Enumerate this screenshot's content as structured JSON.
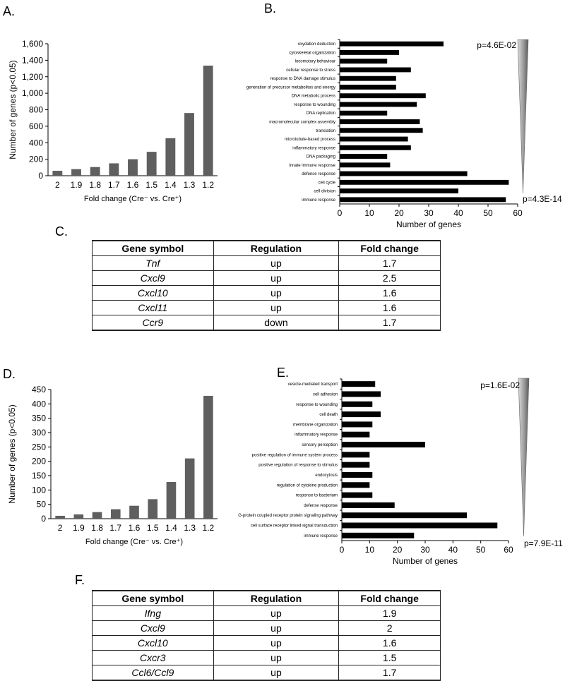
{
  "panels": {
    "a": "A.",
    "b": "B.",
    "c": "C.",
    "d": "D.",
    "e": "E.",
    "f": "F."
  },
  "colors": {
    "hist_bar": "#5f5f5f",
    "go_bar": "#000000",
    "axis": "#000000"
  },
  "pvalues": {
    "b_top": "p=4.6E-02",
    "b_bottom": "p=4.3E-14",
    "e_top": "p=1.6E-02",
    "e_bottom": "p=7.9E-11"
  },
  "tables": {
    "c": {
      "headers": [
        "Gene symbol",
        "Regulation",
        "Fold change"
      ],
      "rows": [
        [
          "Tnf",
          "up",
          "1.7"
        ],
        [
          "Cxcl9",
          "up",
          "2.5"
        ],
        [
          "Cxcl10",
          "up",
          "1.6"
        ],
        [
          "Cxcl11",
          "up",
          "1.6"
        ],
        [
          "Ccr9",
          "down",
          "1.7"
        ]
      ]
    },
    "f": {
      "headers": [
        "Gene symbol",
        "Regulation",
        "Fold change"
      ],
      "rows": [
        [
          "Ifng",
          "up",
          "1.9"
        ],
        [
          "Cxcl9",
          "up",
          "2"
        ],
        [
          "Cxcl10",
          "up",
          "1.6"
        ],
        [
          "Cxcr3",
          "up",
          "1.5"
        ],
        [
          "Ccl6/Ccl9",
          "up",
          "1.7"
        ]
      ]
    }
  },
  "chart_data": [
    {
      "id": "A",
      "type": "bar",
      "categories": [
        "2",
        "1.9",
        "1.8",
        "1.7",
        "1.6",
        "1.5",
        "1.4",
        "1.3",
        "1.2"
      ],
      "values": [
        60,
        80,
        105,
        150,
        200,
        290,
        455,
        760,
        1335
      ],
      "ylabel": "Number of genes (p<0.05)",
      "xlabel": "Fold change (Cre⁻ vs. Cre⁺)",
      "ylim": [
        0,
        1600
      ],
      "yticks": [
        0,
        200,
        400,
        600,
        800,
        1000,
        1200,
        1400,
        1600
      ],
      "ytick_labels": [
        "0",
        "200",
        "400",
        "600",
        "800",
        "1,000",
        "1,200",
        "1,400",
        "1,600"
      ]
    },
    {
      "id": "B",
      "type": "bar",
      "orientation": "horizontal",
      "categories": [
        "oxydation deduction",
        "cytoskeletal organization",
        "locomotory behaviour",
        "cellular response to stress",
        "response to DNA damage stimulus",
        "generation of precursor metabolites and energy",
        "DNA metabolic process",
        "response to wounding",
        "DNA replication",
        "macromolecular complex assembly",
        "translation",
        "microtubule-based process",
        "inflammatory response",
        "DNA packaging",
        "innate immune response",
        "defense response",
        "cell cycle",
        "cell division",
        "immune response"
      ],
      "values": [
        35,
        20,
        16,
        24,
        19,
        19,
        29,
        26,
        16,
        27,
        28,
        23,
        24,
        16,
        17,
        43,
        57,
        40,
        56
      ],
      "xlabel": "Number of genes",
      "xlim": [
        0,
        60
      ],
      "xticks": [
        0,
        10,
        20,
        30,
        40,
        50,
        60
      ]
    },
    {
      "id": "D",
      "type": "bar",
      "categories": [
        "2",
        "1.9",
        "1.8",
        "1.7",
        "1.6",
        "1.5",
        "1.4",
        "1.3",
        "1.2"
      ],
      "values": [
        10,
        15,
        23,
        33,
        45,
        68,
        128,
        210,
        428
      ],
      "ylabel": "Number of genes (p<0.05)",
      "xlabel": "Fold change (Cre⁻ vs. Cre⁺)",
      "ylim": [
        0,
        450
      ],
      "yticks": [
        0,
        50,
        100,
        150,
        200,
        250,
        300,
        350,
        400,
        450
      ],
      "ytick_labels": [
        "0",
        "50",
        "100",
        "150",
        "200",
        "250",
        "300",
        "350",
        "400",
        "450"
      ]
    },
    {
      "id": "E",
      "type": "bar",
      "orientation": "horizontal",
      "categories": [
        "vesicle-mediated transport",
        "cell adhesion",
        "response to wounding",
        "cell death",
        "membrane organization",
        "inflammatory response",
        "sensory perception",
        "positive regulation of immune system process",
        "positive regulation of response to stimulus",
        "endocytosis",
        "regulation of cytokine production",
        "response to bacterium",
        "defense response",
        "G-protein coupled receptor protein signaling pathway",
        "cell surface receptor linked signal transduction",
        "immune response"
      ],
      "values": [
        12,
        14,
        11,
        14,
        11,
        10,
        30,
        10,
        10,
        11,
        10,
        11,
        19,
        45,
        56,
        26
      ],
      "xlabel": "Number of genes",
      "xlim": [
        0,
        60
      ],
      "xticks": [
        0,
        10,
        20,
        30,
        40,
        50,
        60
      ]
    }
  ]
}
